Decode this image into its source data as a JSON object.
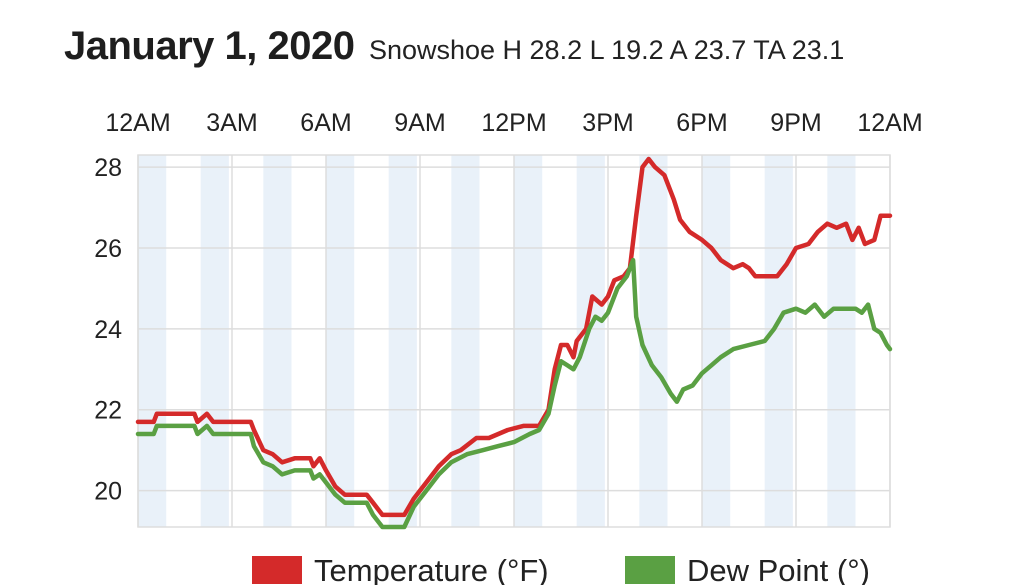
{
  "header": {
    "title": "January 1, 2020",
    "subtitle": "Snowshoe H 28.2 L 19.2 A 23.7 TA 23.1"
  },
  "colors": {
    "temperature": "#d42a2a",
    "dew_point": "#5aa043",
    "band": "#e9f1f9",
    "grid": "#dddddd"
  },
  "chart_data": {
    "type": "line",
    "x_ticks": [
      "12AM",
      "3AM",
      "6AM",
      "9AM",
      "12PM",
      "3PM",
      "6PM",
      "9PM",
      "12AM"
    ],
    "x_tick_hours": [
      0,
      3,
      6,
      9,
      12,
      15,
      18,
      21,
      24
    ],
    "xlim": [
      0,
      24
    ],
    "ylim": [
      19.1,
      28.3
    ],
    "y_ticks": [
      20,
      22,
      24,
      26,
      28
    ],
    "grid": true,
    "legend": "bottom",
    "series": [
      {
        "name": "Temperature (°F)",
        "color": "#d42a2a",
        "points": [
          [
            0,
            21.7
          ],
          [
            0.5,
            21.7
          ],
          [
            0.6,
            21.9
          ],
          [
            1.5,
            21.9
          ],
          [
            1.8,
            21.9
          ],
          [
            1.9,
            21.7
          ],
          [
            2.2,
            21.9
          ],
          [
            2.4,
            21.7
          ],
          [
            3.6,
            21.7
          ],
          [
            3.7,
            21.5
          ],
          [
            4.0,
            21.0
          ],
          [
            4.3,
            20.9
          ],
          [
            4.6,
            20.7
          ],
          [
            5.0,
            20.8
          ],
          [
            5.5,
            20.8
          ],
          [
            5.6,
            20.6
          ],
          [
            5.8,
            20.8
          ],
          [
            6.0,
            20.5
          ],
          [
            6.3,
            20.1
          ],
          [
            6.6,
            19.9
          ],
          [
            7.3,
            19.9
          ],
          [
            7.5,
            19.7
          ],
          [
            7.8,
            19.4
          ],
          [
            8.5,
            19.4
          ],
          [
            8.8,
            19.8
          ],
          [
            9.2,
            20.2
          ],
          [
            9.6,
            20.6
          ],
          [
            10.0,
            20.9
          ],
          [
            10.3,
            21.0
          ],
          [
            10.8,
            21.3
          ],
          [
            11.2,
            21.3
          ],
          [
            11.5,
            21.4
          ],
          [
            11.8,
            21.5
          ],
          [
            12.3,
            21.6
          ],
          [
            12.8,
            21.6
          ],
          [
            13.1,
            22.0
          ],
          [
            13.3,
            23.0
          ],
          [
            13.5,
            23.6
          ],
          [
            13.7,
            23.6
          ],
          [
            13.9,
            23.3
          ],
          [
            14.0,
            23.7
          ],
          [
            14.3,
            24.0
          ],
          [
            14.5,
            24.8
          ],
          [
            14.8,
            24.6
          ],
          [
            15.0,
            24.8
          ],
          [
            15.2,
            25.2
          ],
          [
            15.5,
            25.3
          ],
          [
            15.7,
            25.5
          ],
          [
            15.9,
            26.8
          ],
          [
            16.1,
            28.0
          ],
          [
            16.3,
            28.2
          ],
          [
            16.5,
            28.0
          ],
          [
            16.8,
            27.8
          ],
          [
            17.1,
            27.2
          ],
          [
            17.3,
            26.7
          ],
          [
            17.6,
            26.4
          ],
          [
            18.0,
            26.2
          ],
          [
            18.3,
            26.0
          ],
          [
            18.6,
            25.7
          ],
          [
            19.0,
            25.5
          ],
          [
            19.3,
            25.6
          ],
          [
            19.5,
            25.5
          ],
          [
            19.7,
            25.3
          ],
          [
            20.4,
            25.3
          ],
          [
            20.7,
            25.6
          ],
          [
            21.0,
            26.0
          ],
          [
            21.4,
            26.1
          ],
          [
            21.7,
            26.4
          ],
          [
            22.0,
            26.6
          ],
          [
            22.3,
            26.5
          ],
          [
            22.6,
            26.6
          ],
          [
            22.8,
            26.2
          ],
          [
            23.0,
            26.5
          ],
          [
            23.2,
            26.1
          ],
          [
            23.5,
            26.2
          ],
          [
            23.7,
            26.8
          ],
          [
            24.0,
            26.8
          ]
        ]
      },
      {
        "name": "Dew Point (°)",
        "color": "#5aa043",
        "points": [
          [
            0,
            21.4
          ],
          [
            0.5,
            21.4
          ],
          [
            0.6,
            21.6
          ],
          [
            1.8,
            21.6
          ],
          [
            1.9,
            21.4
          ],
          [
            2.2,
            21.6
          ],
          [
            2.4,
            21.4
          ],
          [
            3.6,
            21.4
          ],
          [
            3.7,
            21.1
          ],
          [
            4.0,
            20.7
          ],
          [
            4.3,
            20.6
          ],
          [
            4.6,
            20.4
          ],
          [
            5.0,
            20.5
          ],
          [
            5.5,
            20.5
          ],
          [
            5.6,
            20.3
          ],
          [
            5.8,
            20.4
          ],
          [
            6.0,
            20.2
          ],
          [
            6.3,
            19.9
          ],
          [
            6.6,
            19.7
          ],
          [
            7.3,
            19.7
          ],
          [
            7.5,
            19.4
          ],
          [
            7.8,
            19.1
          ],
          [
            8.5,
            19.1
          ],
          [
            8.8,
            19.6
          ],
          [
            9.2,
            20.0
          ],
          [
            9.6,
            20.4
          ],
          [
            10.0,
            20.7
          ],
          [
            10.5,
            20.9
          ],
          [
            11.0,
            21.0
          ],
          [
            11.5,
            21.1
          ],
          [
            12.0,
            21.2
          ],
          [
            12.5,
            21.4
          ],
          [
            12.8,
            21.5
          ],
          [
            13.1,
            21.9
          ],
          [
            13.3,
            22.6
          ],
          [
            13.5,
            23.2
          ],
          [
            13.7,
            23.1
          ],
          [
            13.9,
            23.0
          ],
          [
            14.1,
            23.3
          ],
          [
            14.4,
            24.0
          ],
          [
            14.6,
            24.3
          ],
          [
            14.8,
            24.2
          ],
          [
            15.0,
            24.4
          ],
          [
            15.3,
            25.0
          ],
          [
            15.6,
            25.3
          ],
          [
            15.8,
            25.7
          ],
          [
            15.9,
            24.3
          ],
          [
            16.1,
            23.6
          ],
          [
            16.4,
            23.1
          ],
          [
            16.7,
            22.8
          ],
          [
            17.0,
            22.4
          ],
          [
            17.2,
            22.2
          ],
          [
            17.4,
            22.5
          ],
          [
            17.7,
            22.6
          ],
          [
            18.0,
            22.9
          ],
          [
            18.3,
            23.1
          ],
          [
            18.6,
            23.3
          ],
          [
            19.0,
            23.5
          ],
          [
            19.5,
            23.6
          ],
          [
            20.0,
            23.7
          ],
          [
            20.3,
            24.0
          ],
          [
            20.6,
            24.4
          ],
          [
            21.0,
            24.5
          ],
          [
            21.3,
            24.4
          ],
          [
            21.6,
            24.6
          ],
          [
            21.9,
            24.3
          ],
          [
            22.2,
            24.5
          ],
          [
            22.6,
            24.5
          ],
          [
            22.9,
            24.5
          ],
          [
            23.1,
            24.4
          ],
          [
            23.3,
            24.6
          ],
          [
            23.5,
            24.0
          ],
          [
            23.7,
            23.9
          ],
          [
            23.9,
            23.6
          ],
          [
            24.0,
            23.5
          ]
        ]
      }
    ]
  }
}
